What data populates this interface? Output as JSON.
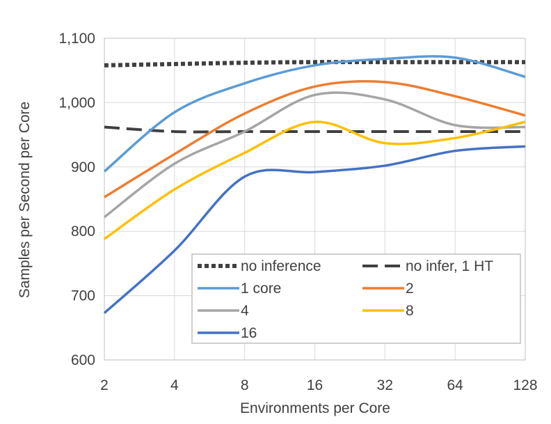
{
  "chart_data": {
    "type": "line",
    "title": "",
    "xlabel": "Environments per Core",
    "ylabel": "Samples per Second per Core",
    "x_scale": "log2",
    "x": [
      2,
      4,
      8,
      16,
      32,
      64,
      128
    ],
    "x_tick_labels": [
      "2",
      "4",
      "8",
      "16",
      "32",
      "64",
      "128"
    ],
    "ylim": [
      600,
      1100
    ],
    "y_ticks": [
      600,
      700,
      800,
      900,
      1000,
      1100
    ],
    "y_tick_labels": [
      "600",
      "700",
      "800",
      "900",
      "1,000",
      "1,100"
    ],
    "grid": "horizontal",
    "legend_position": "bottom-right",
    "series": [
      {
        "name": "no inference",
        "style": "dotted",
        "color": "#404040",
        "values": [
          1058,
          1060,
          1062,
          1063,
          1063,
          1063,
          1063
        ]
      },
      {
        "name": "no infer, 1 HT",
        "style": "dashed",
        "color": "#404040",
        "values": [
          962,
          955,
          955,
          955,
          955,
          955,
          955
        ]
      },
      {
        "name": "1 core",
        "style": "solid",
        "color": "#5B9BD5",
        "values": [
          893,
          985,
          1030,
          1058,
          1068,
          1070,
          1040
        ]
      },
      {
        "name": "2",
        "style": "solid",
        "color": "#ED7D31",
        "values": [
          853,
          920,
          983,
          1025,
          1032,
          1010,
          980
        ]
      },
      {
        "name": "4",
        "style": "solid",
        "color": "#A5A5A5",
        "values": [
          822,
          905,
          955,
          1012,
          1005,
          965,
          962
        ]
      },
      {
        "name": "8",
        "style": "solid",
        "color": "#FFC000",
        "values": [
          788,
          865,
          922,
          970,
          937,
          945,
          970
        ]
      },
      {
        "name": "16",
        "style": "solid",
        "color": "#4472C4",
        "values": [
          673,
          770,
          885,
          892,
          902,
          925,
          932
        ]
      }
    ]
  }
}
